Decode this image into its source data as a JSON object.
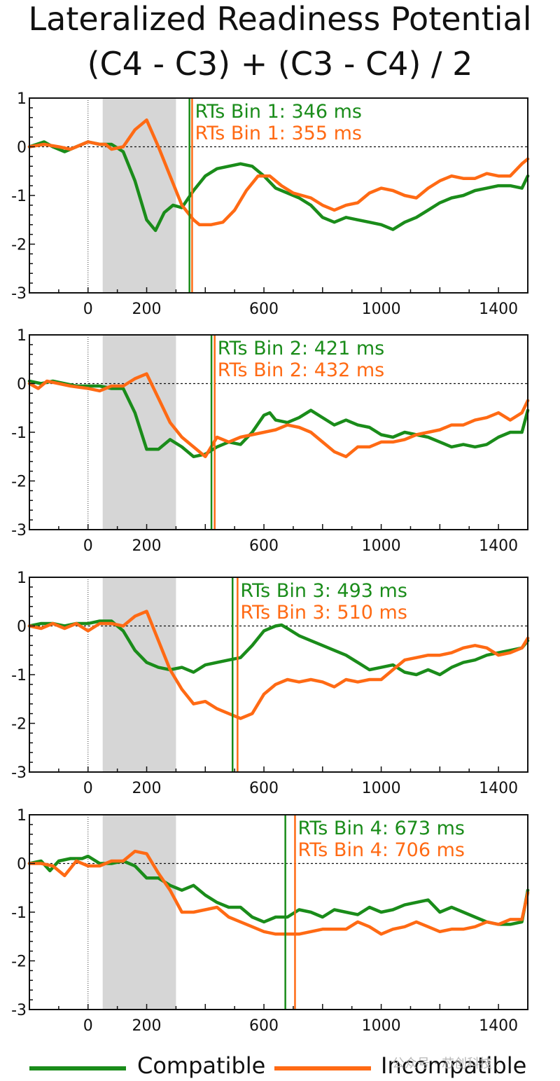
{
  "title_line1": "Lateralized Readiness Potential",
  "title_line2": "(C4 - C3) + (C3 - C4) / 2",
  "colors": {
    "compatible": "#1a8c1a",
    "incompatible": "#ff6a14",
    "shade": "#d6d6d6"
  },
  "legend": {
    "compatible": "Compatible",
    "incompatible": "Incompatible"
  },
  "watermark": "公众号 · 芯创科技",
  "chart_data": [
    {
      "type": "line",
      "xlim": [
        -200,
        1500
      ],
      "ylim": [
        -3,
        1
      ],
      "xticks": [
        "0",
        "200",
        "600",
        "1000",
        "1400"
      ],
      "xtick_values": [
        0,
        200,
        600,
        1000,
        1400
      ],
      "yticks": [
        "1",
        "0",
        "-1",
        "-2",
        "-3"
      ],
      "ytick_values": [
        1,
        0,
        -1,
        -2,
        -3
      ],
      "shaded_interval": [
        50,
        300
      ],
      "rt_compatible": 346,
      "rt_incompatible": 355,
      "rt_label_compatible": "RTs Bin 1: 346 ms",
      "rt_label_incompatible": "RTs Bin 1: 355 ms",
      "series": [
        {
          "name": "Compatible",
          "x": [
            -200,
            -150,
            -120,
            -80,
            -40,
            0,
            40,
            80,
            120,
            160,
            200,
            230,
            260,
            290,
            320,
            360,
            400,
            440,
            480,
            520,
            560,
            600,
            640,
            680,
            720,
            760,
            800,
            840,
            880,
            920,
            960,
            1000,
            1040,
            1080,
            1120,
            1160,
            1200,
            1240,
            1280,
            1320,
            1360,
            1400,
            1440,
            1480,
            1500
          ],
          "y": [
            0,
            0.1,
            0,
            -0.1,
            0,
            0.1,
            0.05,
            0.05,
            -0.1,
            -0.7,
            -1.5,
            -1.72,
            -1.35,
            -1.2,
            -1.25,
            -0.9,
            -0.6,
            -0.45,
            -0.4,
            -0.35,
            -0.4,
            -0.6,
            -0.85,
            -0.95,
            -1.05,
            -1.2,
            -1.45,
            -1.55,
            -1.45,
            -1.5,
            -1.55,
            -1.6,
            -1.7,
            -1.55,
            -1.45,
            -1.3,
            -1.15,
            -1.05,
            -1.0,
            -0.9,
            -0.85,
            -0.8,
            -0.8,
            -0.85,
            -0.6
          ]
        },
        {
          "name": "Incompatible",
          "x": [
            -200,
            -150,
            -100,
            -60,
            -20,
            0,
            40,
            60,
            80,
            120,
            160,
            200,
            240,
            280,
            320,
            360,
            380,
            420,
            460,
            500,
            540,
            580,
            620,
            660,
            700,
            760,
            800,
            840,
            880,
            920,
            960,
            1000,
            1040,
            1080,
            1120,
            1160,
            1200,
            1240,
            1280,
            1320,
            1360,
            1400,
            1440,
            1480,
            1500
          ],
          "y": [
            0,
            0.05,
            0,
            -0.05,
            0.05,
            0.1,
            0.05,
            0.05,
            -0.05,
            0,
            0.35,
            0.55,
            0,
            -0.6,
            -1.2,
            -1.5,
            -1.6,
            -1.6,
            -1.55,
            -1.3,
            -0.9,
            -0.6,
            -0.6,
            -0.8,
            -0.95,
            -1.05,
            -1.2,
            -1.3,
            -1.2,
            -1.15,
            -0.95,
            -0.85,
            -0.9,
            -1.0,
            -1.05,
            -0.85,
            -0.7,
            -0.6,
            -0.65,
            -0.65,
            -0.55,
            -0.6,
            -0.6,
            -0.35,
            -0.25
          ]
        }
      ]
    },
    {
      "type": "line",
      "xlim": [
        -200,
        1500
      ],
      "ylim": [
        -3,
        1
      ],
      "xticks": [
        "0",
        "200",
        "600",
        "1000",
        "1400"
      ],
      "xtick_values": [
        0,
        200,
        600,
        1000,
        1400
      ],
      "yticks": [
        "1",
        "0",
        "-1",
        "-2",
        "-3"
      ],
      "ytick_values": [
        1,
        0,
        -1,
        -2,
        -3
      ],
      "shaded_interval": [
        50,
        300
      ],
      "rt_compatible": 421,
      "rt_incompatible": 432,
      "rt_label_compatible": "RTs Bin 2: 421 ms",
      "rt_label_incompatible": "RTs Bin 2: 432 ms",
      "series": [
        {
          "name": "Compatible",
          "x": [
            -200,
            -160,
            -120,
            -80,
            -40,
            0,
            40,
            80,
            120,
            160,
            200,
            240,
            280,
            320,
            360,
            400,
            440,
            480,
            520,
            560,
            600,
            620,
            640,
            680,
            720,
            760,
            800,
            840,
            880,
            920,
            960,
            1000,
            1040,
            1080,
            1120,
            1160,
            1200,
            1240,
            1280,
            1320,
            1360,
            1400,
            1440,
            1480,
            1500
          ],
          "y": [
            0.05,
            0,
            0.05,
            0,
            -0.05,
            -0.05,
            -0.05,
            -0.1,
            -0.1,
            -0.6,
            -1.35,
            -1.35,
            -1.15,
            -1.3,
            -1.5,
            -1.45,
            -1.3,
            -1.2,
            -1.25,
            -1.0,
            -0.65,
            -0.6,
            -0.75,
            -0.8,
            -0.7,
            -0.55,
            -0.7,
            -0.85,
            -0.75,
            -0.85,
            -0.9,
            -1.05,
            -1.1,
            -1.0,
            -1.05,
            -1.1,
            -1.2,
            -1.3,
            -1.25,
            -1.3,
            -1.25,
            -1.1,
            -1.0,
            -1.0,
            -0.55
          ]
        },
        {
          "name": "Incompatible",
          "x": [
            -200,
            -170,
            -140,
            -100,
            -60,
            0,
            40,
            80,
            120,
            160,
            200,
            240,
            280,
            320,
            360,
            400,
            440,
            480,
            520,
            560,
            600,
            640,
            680,
            720,
            760,
            800,
            840,
            880,
            920,
            960,
            1000,
            1040,
            1080,
            1120,
            1160,
            1200,
            1240,
            1280,
            1320,
            1360,
            1400,
            1440,
            1480,
            1500
          ],
          "y": [
            0,
            -0.1,
            0.05,
            0,
            -0.05,
            -0.1,
            -0.15,
            -0.05,
            -0.05,
            0.1,
            0.2,
            -0.3,
            -0.8,
            -1.1,
            -1.3,
            -1.5,
            -1.1,
            -1.2,
            -1.1,
            -1.05,
            -1.0,
            -0.95,
            -0.85,
            -0.9,
            -1.0,
            -1.2,
            -1.4,
            -1.5,
            -1.3,
            -1.3,
            -1.2,
            -1.2,
            -1.15,
            -1.05,
            -1.0,
            -0.95,
            -0.85,
            -0.85,
            -0.75,
            -0.7,
            -0.6,
            -0.75,
            -0.6,
            -0.35
          ]
        }
      ]
    },
    {
      "type": "line",
      "xlim": [
        -200,
        1500
      ],
      "ylim": [
        -3,
        1
      ],
      "xticks": [
        "0",
        "200",
        "600",
        "1000",
        "1400"
      ],
      "xtick_values": [
        0,
        200,
        600,
        1000,
        1400
      ],
      "yticks": [
        "1",
        "0",
        "-1",
        "-2",
        "-3"
      ],
      "ytick_values": [
        1,
        0,
        -1,
        -2,
        -3
      ],
      "shaded_interval": [
        50,
        300
      ],
      "rt_compatible": 493,
      "rt_incompatible": 510,
      "rt_label_compatible": "RTs Bin 3: 493 ms",
      "rt_label_incompatible": "RTs Bin 3: 510 ms",
      "series": [
        {
          "name": "Compatible",
          "x": [
            -200,
            -160,
            -120,
            -80,
            -40,
            0,
            40,
            80,
            120,
            160,
            200,
            240,
            280,
            320,
            360,
            400,
            440,
            480,
            520,
            560,
            600,
            640,
            660,
            680,
            720,
            760,
            800,
            840,
            880,
            920,
            960,
            1000,
            1040,
            1080,
            1120,
            1160,
            1200,
            1240,
            1280,
            1320,
            1360,
            1400,
            1440,
            1480,
            1500
          ],
          "y": [
            0,
            0.05,
            0.05,
            0,
            0.05,
            0.05,
            0.1,
            0.1,
            -0.1,
            -0.5,
            -0.75,
            -0.85,
            -0.9,
            -0.85,
            -0.95,
            -0.8,
            -0.75,
            -0.7,
            -0.65,
            -0.4,
            -0.1,
            0.0,
            0.02,
            -0.05,
            -0.2,
            -0.3,
            -0.4,
            -0.5,
            -0.6,
            -0.75,
            -0.9,
            -0.85,
            -0.8,
            -0.95,
            -1.0,
            -0.9,
            -1.0,
            -0.85,
            -0.75,
            -0.7,
            -0.6,
            -0.55,
            -0.5,
            -0.45,
            -0.3
          ]
        },
        {
          "name": "Incompatible",
          "x": [
            -200,
            -160,
            -120,
            -80,
            -40,
            0,
            40,
            80,
            120,
            160,
            200,
            240,
            280,
            320,
            360,
            400,
            440,
            480,
            520,
            560,
            580,
            600,
            640,
            680,
            720,
            760,
            800,
            840,
            880,
            920,
            960,
            1000,
            1040,
            1080,
            1120,
            1160,
            1200,
            1240,
            1280,
            1320,
            1360,
            1400,
            1440,
            1480,
            1500
          ],
          "y": [
            0,
            -0.05,
            0.05,
            -0.05,
            0.05,
            -0.1,
            0.05,
            0.05,
            0,
            0.2,
            0.3,
            -0.3,
            -0.9,
            -1.3,
            -1.6,
            -1.55,
            -1.7,
            -1.8,
            -1.9,
            -1.8,
            -1.6,
            -1.4,
            -1.2,
            -1.1,
            -1.15,
            -1.1,
            -1.15,
            -1.25,
            -1.1,
            -1.15,
            -1.1,
            -1.1,
            -0.9,
            -0.7,
            -0.65,
            -0.6,
            -0.6,
            -0.55,
            -0.45,
            -0.4,
            -0.45,
            -0.6,
            -0.55,
            -0.45,
            -0.25
          ]
        }
      ]
    },
    {
      "type": "line",
      "xlim": [
        -200,
        1500
      ],
      "ylim": [
        -3,
        1
      ],
      "xticks": [
        "0",
        "200",
        "600",
        "1000",
        "1400"
      ],
      "xtick_values": [
        0,
        200,
        600,
        1000,
        1400
      ],
      "yticks": [
        "1",
        "0",
        "-1",
        "-2",
        "-3"
      ],
      "ytick_values": [
        1,
        0,
        -1,
        -2,
        -3
      ],
      "shaded_interval": [
        50,
        300
      ],
      "rt_compatible": 673,
      "rt_incompatible": 706,
      "rt_label_compatible": "RTs Bin 4: 673 ms",
      "rt_label_incompatible": "RTs Bin 4: 706 ms",
      "series": [
        {
          "name": "Compatible",
          "x": [
            -200,
            -160,
            -130,
            -100,
            -60,
            -20,
            0,
            40,
            80,
            120,
            160,
            200,
            240,
            280,
            320,
            360,
            400,
            440,
            480,
            520,
            560,
            600,
            640,
            680,
            720,
            760,
            800,
            840,
            880,
            920,
            960,
            1000,
            1040,
            1080,
            1120,
            1160,
            1200,
            1240,
            1280,
            1320,
            1360,
            1400,
            1440,
            1480,
            1500
          ],
          "y": [
            0,
            0.05,
            -0.15,
            0.05,
            0.1,
            0.1,
            0.15,
            0,
            0,
            0.05,
            -0.05,
            -0.3,
            -0.3,
            -0.45,
            -0.55,
            -0.45,
            -0.65,
            -0.8,
            -0.9,
            -0.9,
            -1.1,
            -1.2,
            -1.1,
            -1.1,
            -0.95,
            -1.0,
            -1.1,
            -0.95,
            -1.0,
            -1.05,
            -0.9,
            -1.0,
            -0.95,
            -0.85,
            -0.8,
            -0.75,
            -1.0,
            -0.9,
            -1.0,
            -1.1,
            -1.2,
            -1.25,
            -1.25,
            -1.2,
            -0.55
          ]
        },
        {
          "name": "Incompatible",
          "x": [
            -200,
            -160,
            -120,
            -80,
            -40,
            0,
            40,
            80,
            120,
            160,
            200,
            240,
            280,
            320,
            360,
            400,
            440,
            480,
            520,
            560,
            600,
            640,
            680,
            720,
            760,
            800,
            840,
            880,
            920,
            960,
            1000,
            1040,
            1080,
            1120,
            1160,
            1200,
            1240,
            1280,
            1320,
            1360,
            1400,
            1440,
            1480,
            1500
          ],
          "y": [
            0,
            0,
            -0.05,
            -0.25,
            0.05,
            -0.05,
            -0.05,
            0.05,
            0.05,
            0.25,
            0.2,
            -0.2,
            -0.55,
            -1.0,
            -1.0,
            -0.95,
            -0.9,
            -1.1,
            -1.2,
            -1.3,
            -1.4,
            -1.45,
            -1.45,
            -1.45,
            -1.4,
            -1.35,
            -1.35,
            -1.35,
            -1.2,
            -1.3,
            -1.45,
            -1.35,
            -1.3,
            -1.2,
            -1.3,
            -1.4,
            -1.35,
            -1.35,
            -1.3,
            -1.2,
            -1.25,
            -1.15,
            -1.15,
            -0.6
          ]
        }
      ]
    }
  ]
}
